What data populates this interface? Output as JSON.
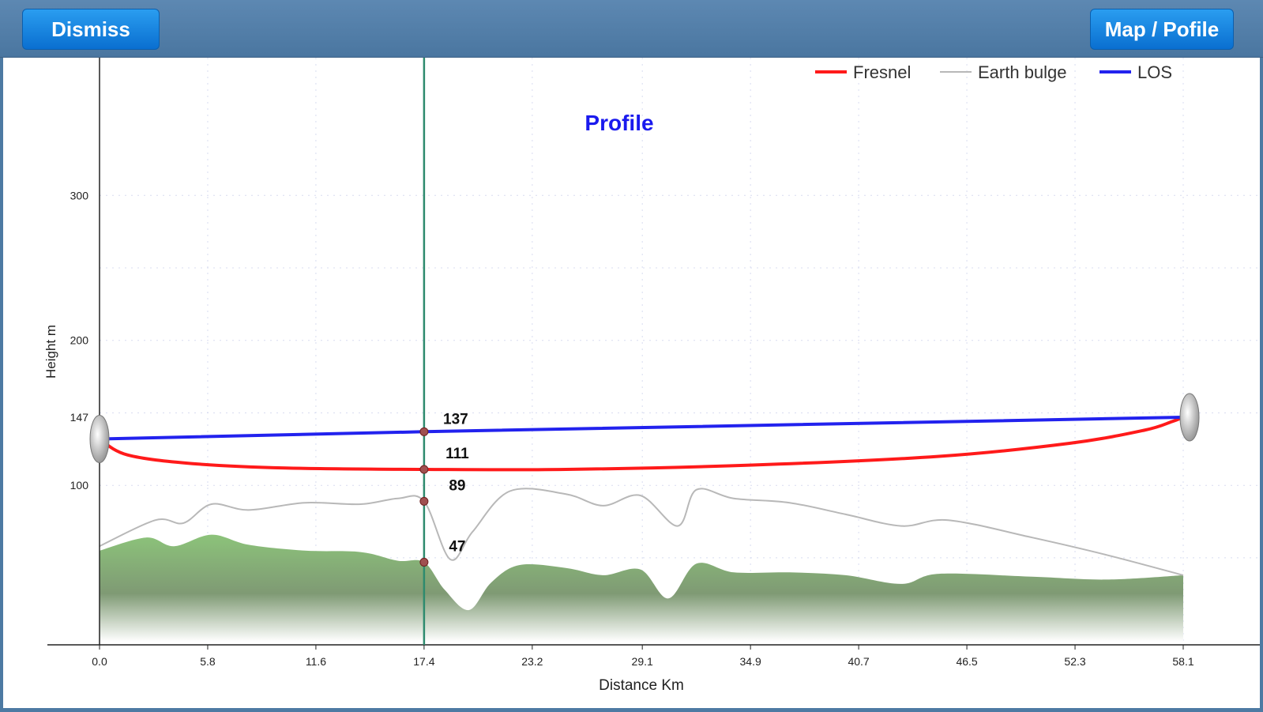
{
  "toolbar": {
    "dismiss_label": "Dismiss",
    "map_profile_label": "Map / Pofile"
  },
  "colors": {
    "fresnel": "#ff1a1a",
    "earth_bulge": "#b8b8b8",
    "los": "#2222ee",
    "terrain": "#8cc37a",
    "cursor": "#2e8b6e",
    "title": "#1a1aee"
  },
  "icons": {
    "start": "antenna-dish-icon",
    "end": "antenna-dish-icon"
  },
  "chart_data": {
    "type": "line",
    "title": "Profile",
    "xlabel": "Distance Km",
    "ylabel": "Height m",
    "xlim": [
      0,
      58.1
    ],
    "ylim": [
      -10,
      395
    ],
    "x_ticks": [
      "0.0",
      "5.8",
      "11.6",
      "17.4",
      "23.2",
      "29.1",
      "34.9",
      "40.7",
      "46.5",
      "52.3",
      "58.1"
    ],
    "y_ticks": [
      {
        "value": 300,
        "label": "300"
      },
      {
        "value": 200,
        "label": "200"
      },
      {
        "value": 147,
        "label": "147"
      },
      {
        "value": 100,
        "label": "100"
      }
    ],
    "grid": true,
    "legend": {
      "position": "top-right",
      "entries": [
        "Fresnel",
        "Earth bulge",
        "LOS"
      ]
    },
    "series": [
      {
        "name": "LOS",
        "x": [
          0,
          17.4,
          58.1
        ],
        "y": [
          132,
          137,
          147
        ]
      },
      {
        "name": "Fresnel",
        "x": [
          0,
          1.5,
          5,
          10,
          17.4,
          25,
          35,
          45,
          52,
          56,
          57.5,
          58.1
        ],
        "y": [
          132,
          121,
          115,
          112,
          111,
          111,
          114,
          120,
          129,
          138,
          144,
          147
        ]
      },
      {
        "name": "Earth bulge",
        "x": [
          0,
          3,
          4.5,
          6,
          8,
          11,
          14,
          16,
          17.4,
          18.8,
          20,
          22,
          25,
          27,
          29,
          31,
          32,
          34,
          37,
          40,
          43,
          45.5,
          50,
          54,
          58.1
        ],
        "y": [
          58,
          76,
          74,
          87,
          83,
          88,
          87,
          91,
          89,
          49,
          68,
          96,
          94,
          86,
          93,
          72,
          97,
          91,
          88,
          80,
          72,
          76,
          64,
          52,
          38
        ]
      },
      {
        "name": "Terrain",
        "x": [
          0,
          2.5,
          4,
          6,
          8,
          11,
          14,
          16,
          17.4,
          18.5,
          19.8,
          21,
          22.5,
          25,
          27,
          29,
          30.5,
          32,
          34,
          37,
          40,
          43,
          45,
          50,
          54,
          58.1
        ],
        "y": [
          55,
          64,
          58,
          66,
          59,
          55,
          54,
          48,
          47,
          28,
          14,
          33,
          45,
          43,
          38,
          42,
          22,
          46,
          40,
          40,
          38,
          32,
          39,
          37,
          35,
          38
        ]
      }
    ],
    "cursor": {
      "x": 17.4,
      "labels": [
        {
          "series": "LOS",
          "value": 137,
          "label": "137"
        },
        {
          "series": "Fresnel",
          "value": 111,
          "label": "111"
        },
        {
          "series": "Earth bulge",
          "value": 89,
          "label": "89"
        },
        {
          "series": "Terrain",
          "value": 47,
          "label": "47"
        }
      ]
    }
  }
}
